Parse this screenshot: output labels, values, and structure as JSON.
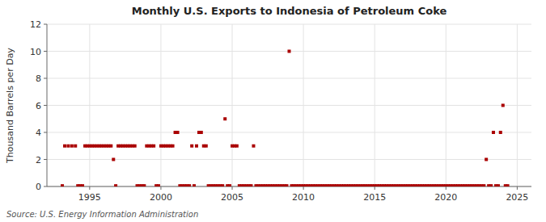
{
  "chart_data": {
    "type": "scatter",
    "title": "Monthly U.S. Exports to Indonesia of Petroleum Coke",
    "ylabel": "Thousand Barrels per Day",
    "source": "Source: U.S. Energy Information Administration",
    "color": "#aa0000",
    "marker": "square",
    "grid": true,
    "xlim": [
      1992.0,
      2026.0
    ],
    "ylim": [
      0,
      12
    ],
    "xticks": [
      1995,
      2000,
      2005,
      2010,
      2015,
      2020,
      2025
    ],
    "yticks": [
      0,
      2,
      4,
      6,
      8,
      10,
      12
    ],
    "x": [
      1993.08,
      1993.25,
      1993.5,
      1993.75,
      1994.0,
      1994.17,
      1994.33,
      1994.5,
      1994.67,
      1994.83,
      1995.0,
      1995.17,
      1995.33,
      1995.5,
      1995.67,
      1995.83,
      1996.0,
      1996.17,
      1996.33,
      1996.5,
      1996.67,
      1996.83,
      1997.0,
      1997.17,
      1997.33,
      1997.5,
      1997.67,
      1997.83,
      1998.0,
      1998.17,
      1998.33,
      1998.5,
      1998.67,
      1998.83,
      1999.0,
      1999.17,
      1999.33,
      1999.5,
      1999.67,
      1999.83,
      2000.0,
      2000.17,
      2000.33,
      2000.5,
      2000.67,
      2000.83,
      2001.0,
      2001.17,
      2001.33,
      2001.5,
      2001.67,
      2001.83,
      2002.0,
      2002.17,
      2002.33,
      2002.5,
      2002.67,
      2002.83,
      2003.0,
      2003.17,
      2003.33,
      2003.5,
      2003.67,
      2003.83,
      2004.0,
      2004.17,
      2004.33,
      2004.5,
      2004.67,
      2004.83,
      2005.0,
      2005.17,
      2005.33,
      2005.5,
      2005.67,
      2005.83,
      2006.0,
      2006.17,
      2006.33,
      2006.5,
      2006.67,
      2006.83,
      2007.0,
      2007.17,
      2007.33,
      2007.5,
      2007.67,
      2007.83,
      2008.0,
      2008.17,
      2008.33,
      2008.5,
      2008.67,
      2008.83,
      2009.0,
      2009.17,
      2009.33,
      2009.5,
      2009.67,
      2009.83,
      2010.0,
      2010.17,
      2010.33,
      2010.5,
      2010.67,
      2010.83,
      2011.0,
      2011.17,
      2011.33,
      2011.5,
      2011.67,
      2011.83,
      2012.0,
      2012.17,
      2012.33,
      2012.5,
      2012.67,
      2012.83,
      2013.0,
      2013.17,
      2013.33,
      2013.5,
      2013.67,
      2013.83,
      2014.0,
      2014.17,
      2014.33,
      2014.5,
      2014.67,
      2014.83,
      2015.0,
      2015.17,
      2015.33,
      2015.5,
      2015.67,
      2015.83,
      2016.0,
      2016.17,
      2016.33,
      2016.5,
      2016.67,
      2016.83,
      2017.0,
      2017.17,
      2017.33,
      2017.5,
      2017.67,
      2017.83,
      2018.0,
      2018.17,
      2018.33,
      2018.5,
      2018.67,
      2018.83,
      2019.0,
      2019.17,
      2019.33,
      2019.5,
      2019.67,
      2019.83,
      2020.0,
      2020.17,
      2020.33,
      2020.5,
      2020.67,
      2020.83,
      2021.0,
      2021.17,
      2021.33,
      2021.5,
      2021.67,
      2021.83,
      2022.0,
      2022.17,
      2022.33,
      2022.5,
      2022.67,
      2022.83,
      2023.0,
      2023.17,
      2023.33,
      2023.5,
      2023.67,
      2023.83,
      2024.0,
      2024.17,
      2024.33
    ],
    "values": [
      0.05,
      3,
      3,
      3,
      3,
      0.05,
      0.05,
      0.05,
      3,
      3,
      3,
      3,
      3,
      3,
      3,
      3,
      3,
      3,
      3,
      3,
      2,
      0.05,
      3,
      3,
      3,
      3,
      3,
      3,
      3,
      3,
      0.05,
      0.05,
      0.05,
      0.05,
      3,
      3,
      3,
      3,
      0.05,
      0.05,
      3,
      3,
      3,
      3,
      3,
      3,
      4,
      4,
      0.05,
      0.05,
      0.05,
      0.05,
      0.05,
      3,
      0.05,
      3,
      4,
      4,
      3,
      3,
      0.05,
      0.05,
      0.05,
      0.05,
      0.05,
      0.05,
      0.05,
      5,
      0.05,
      0.05,
      3,
      3,
      3,
      0.05,
      0.05,
      0.05,
      0.05,
      0.05,
      0.05,
      3,
      0.05,
      0.05,
      0.05,
      0.05,
      0.05,
      0.05,
      0.05,
      0.05,
      0.05,
      0.05,
      0.05,
      0.05,
      0.05,
      0.05,
      10,
      0.05,
      0.05,
      0.05,
      0.05,
      0.05,
      0.05,
      0.05,
      0.05,
      0.05,
      0.05,
      0.05,
      0.05,
      0.05,
      0.05,
      0.05,
      0.05,
      0.05,
      0.05,
      0.05,
      0.05,
      0.05,
      0.05,
      0.05,
      0.05,
      0.05,
      0.05,
      0.05,
      0.05,
      0.05,
      0.05,
      0.05,
      0.05,
      0.05,
      0.05,
      0.05,
      0.05,
      0.05,
      0.05,
      0.05,
      0.05,
      0.05,
      0.05,
      0.05,
      0.05,
      0.05,
      0.05,
      0.05,
      0.05,
      0.05,
      0.05,
      0.05,
      0.05,
      0.05,
      0.05,
      0.05,
      0.05,
      0.05,
      0.05,
      0.05,
      0.05,
      0.05,
      0.05,
      0.05,
      0.05,
      0.05,
      0.05,
      0.05,
      0.05,
      0.05,
      0.05,
      0.05,
      0.05,
      0.05,
      0.05,
      0.05,
      0.05,
      0.05,
      0.05,
      0.05,
      0.05,
      0.05,
      0.05,
      2,
      0.05,
      0.05,
      4,
      0.05,
      0.05,
      4,
      6,
      0.05,
      0.05
    ]
  }
}
